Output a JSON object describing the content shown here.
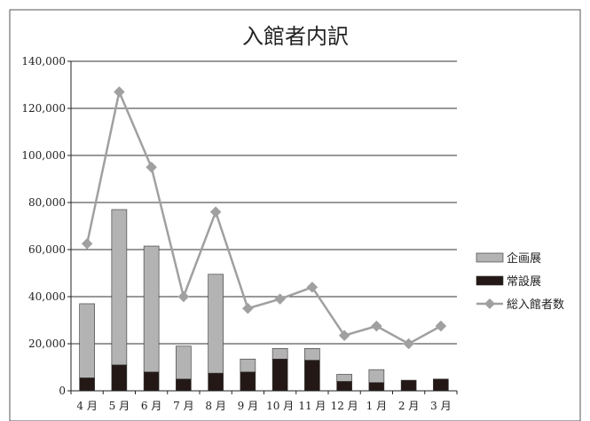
{
  "chart_data": {
    "type": "bar",
    "stacked": true,
    "title": "入館者内訳",
    "categories": [
      "4 月",
      "5 月",
      "6 月",
      "7 月",
      "8 月",
      "9 月",
      "10 月",
      "11 月",
      "12 月",
      "1 月",
      "2 月",
      "3 月"
    ],
    "series": [
      {
        "name": "常設展",
        "kind": "bar",
        "color": "#231815",
        "values": [
          5500,
          11000,
          8000,
          5000,
          7500,
          8000,
          13500,
          13000,
          4000,
          3500,
          4500,
          5000
        ]
      },
      {
        "name": "企画展",
        "kind": "bar",
        "color": "#b3b3b3",
        "values": [
          31500,
          66000,
          53500,
          14000,
          42000,
          5500,
          4500,
          5000,
          3000,
          5500,
          0,
          0
        ]
      },
      {
        "name": "総入館者数",
        "kind": "line",
        "color": "#a0a0a0",
        "values": [
          62500,
          127000,
          95000,
          40000,
          76000,
          35000,
          39000,
          44000,
          23500,
          27500,
          20000,
          27500
        ]
      }
    ],
    "legend_order": [
      "企画展",
      "常設展",
      "総入館者数"
    ],
    "ylim": [
      0,
      140000
    ],
    "yticks": [
      0,
      20000,
      40000,
      60000,
      80000,
      100000,
      120000,
      140000
    ],
    "ytick_labels": [
      "0",
      "20,000",
      "40,000",
      "60,000",
      "80,000",
      "100,000",
      "120,000",
      "140,000"
    ],
    "grid": true,
    "legend_position": "right"
  }
}
